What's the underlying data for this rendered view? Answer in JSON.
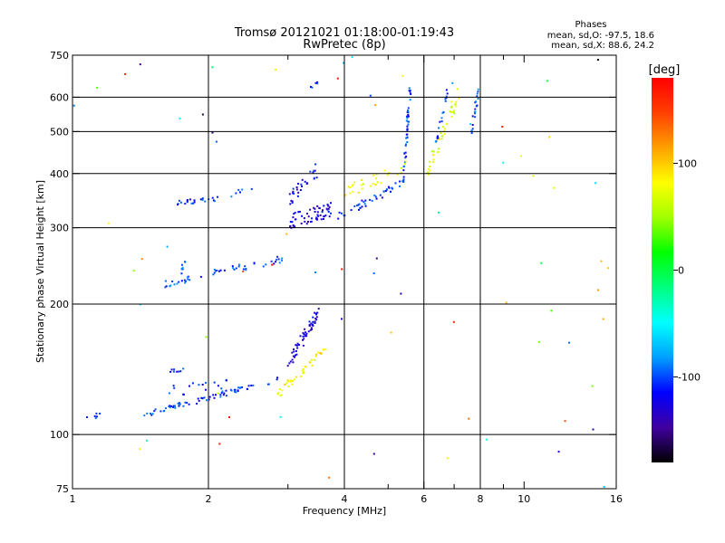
{
  "chart_data": {
    "type": "scatter",
    "title": "Tromsø 20121021 01:18:00-01:19:43",
    "subtitle": "RwPretec (8p)",
    "xlabel": "Frequency [MHz]",
    "ylabel": "Stationary phase Virtual Height [km]",
    "x_scale": "log",
    "y_scale": "log",
    "xlim": [
      1,
      16
    ],
    "ylim": [
      75,
      750
    ],
    "x_ticks": [
      1,
      2,
      4,
      6,
      8,
      10,
      16
    ],
    "x_gridlines": [
      2,
      4,
      6,
      8
    ],
    "x_minor_ticks": [
      3,
      5,
      7,
      9
    ],
    "y_ticks": [
      75,
      100,
      200,
      300,
      400,
      500,
      600,
      750
    ],
    "y_gridlines": [
      100,
      200,
      300,
      400,
      500,
      600
    ],
    "grid": true,
    "phase_info": {
      "title": "Phases",
      "line1": "mean, sd,O: -97.5, 18.6",
      "line2": "mean, sd,X:  88.6, 24.2"
    },
    "colorbar": {
      "label": "[deg]",
      "range": [
        -180,
        180
      ],
      "ticks": [
        {
          "value": 100,
          "label": "100"
        },
        {
          "value": 0,
          "label": "0"
        },
        {
          "value": -100,
          "label": "-100"
        }
      ],
      "colors": [
        "#000000",
        "#4000a0",
        "#0000ff",
        "#00a0ff",
        "#00ffff",
        "#00ff80",
        "#00ff00",
        "#a0ff00",
        "#ffff00",
        "#ffa000",
        "#ff4000",
        "#ff0000"
      ]
    },
    "series": [
      {
        "traces": [
          {
            "f0": 1.4,
            "f1": 2.9,
            "h0": 110,
            "h1": 135,
            "phase": -105,
            "n": 70,
            "jit": 0.015
          },
          {
            "f0": 1.05,
            "f1": 1.15,
            "h0": 108,
            "h1": 112,
            "phase": -110,
            "n": 6,
            "jit": 0.02
          },
          {
            "f0": 1.62,
            "f1": 2.2,
            "h0": 125,
            "h1": 132,
            "phase": -105,
            "n": 16,
            "jit": 0.03
          },
          {
            "f0": 1.65,
            "f1": 1.78,
            "h0": 140,
            "h1": 142,
            "phase": -110,
            "n": 8,
            "jit": 0.01
          },
          {
            "f0": 3.0,
            "f1": 3.5,
            "h0": 145,
            "h1": 190,
            "phase": -130,
            "n": 55,
            "jit": 0.035
          },
          {
            "f0": 2.85,
            "f1": 3.65,
            "h0": 124,
            "h1": 158,
            "phase": 85,
            "n": 40,
            "jit": 0.02
          },
          {
            "f0": 1.6,
            "f1": 2.95,
            "h0": 222,
            "h1": 255,
            "phase": -100,
            "n": 50,
            "jit": 0.02
          },
          {
            "f0": 1.72,
            "f1": 1.8,
            "h0": 228,
            "h1": 262,
            "phase": -95,
            "n": 7,
            "jit": 0.015
          },
          {
            "f0": 1.68,
            "f1": 2.1,
            "h0": 342,
            "h1": 350,
            "phase": -105,
            "n": 22,
            "jit": 0.012
          },
          {
            "f0": 2.2,
            "f1": 2.5,
            "h0": 355,
            "h1": 370,
            "phase": -100,
            "n": 6,
            "jit": 0.015
          },
          {
            "f0": 3.0,
            "f1": 3.75,
            "h0": 310,
            "h1": 330,
            "phase": -125,
            "n": 60,
            "jit": 0.04
          },
          {
            "f0": 3.75,
            "f1": 5.4,
            "h0": 312,
            "h1": 380,
            "phase": -105,
            "n": 40,
            "jit": 0.02
          },
          {
            "f0": 3.0,
            "f1": 3.5,
            "h0": 345,
            "h1": 410,
            "phase": -120,
            "n": 30,
            "jit": 0.04
          },
          {
            "f0": 5.4,
            "f1": 5.6,
            "h0": 380,
            "h1": 640,
            "phase": -105,
            "n": 45,
            "jit": 0.02
          },
          {
            "f0": 4.0,
            "f1": 5.5,
            "h0": 360,
            "h1": 420,
            "phase": 80,
            "n": 30,
            "jit": 0.035
          },
          {
            "f0": 6.0,
            "f1": 7.2,
            "h0": 390,
            "h1": 620,
            "phase": 70,
            "n": 40,
            "jit": 0.04
          },
          {
            "f0": 6.4,
            "f1": 6.8,
            "h0": 470,
            "h1": 645,
            "phase": -105,
            "n": 18,
            "jit": 0.015
          },
          {
            "f0": 7.6,
            "f1": 7.95,
            "h0": 480,
            "h1": 640,
            "phase": -100,
            "n": 20,
            "jit": 0.015
          },
          {
            "f0": 3.38,
            "f1": 3.5,
            "h0": 630,
            "h1": 650,
            "phase": -105,
            "n": 5,
            "jit": 0.01
          }
        ]
      }
    ]
  }
}
